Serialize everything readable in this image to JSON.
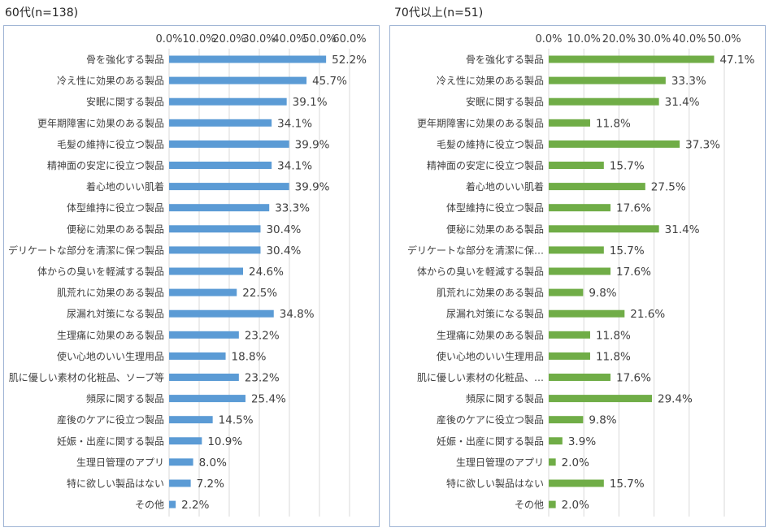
{
  "charts": [
    {
      "title": "60代(n=138)",
      "type": "bar",
      "orientation": "horizontal",
      "color": "#5b9bd5",
      "xlim": [
        0,
        60
      ],
      "ticks": [
        "0.0%",
        "10.0%",
        "20.0%",
        "30.0%",
        "40.0%",
        "50.0%",
        "60.0%"
      ],
      "categories": [
        "骨を強化する製品",
        "冷え性に効果のある製品",
        "安眠に関する製品",
        "更年期障害に効果のある製品",
        "毛髪の維持に役立つ製品",
        "精神面の安定に役立つ製品",
        "着心地のいい肌着",
        "体型維持に役立つ製品",
        "便秘に効果のある製品",
        "デリケートな部分を清潔に保つ製品",
        "体からの臭いを軽減する製品",
        "肌荒れに効果のある製品",
        "尿漏れ対策になる製品",
        "生理痛に効果のある製品",
        "使い心地のいい生理用品",
        "肌に優しい素材の化粧品、ソープ等",
        "頻尿に関する製品",
        "産後のケアに役立つ製品",
        "妊娠・出産に関する製品",
        "生理日管理のアプリ",
        "特に欲しい製品はない",
        "その他"
      ],
      "values": [
        52.2,
        45.7,
        39.1,
        34.1,
        39.9,
        34.1,
        39.9,
        33.3,
        30.4,
        30.4,
        24.6,
        22.5,
        34.8,
        23.2,
        18.8,
        23.2,
        25.4,
        14.5,
        10.9,
        8.0,
        7.2,
        2.2
      ],
      "labels": [
        "52.2%",
        "45.7%",
        "39.1%",
        "34.1%",
        "39.9%",
        "34.1%",
        "39.9%",
        "33.3%",
        "30.4%",
        "30.4%",
        "24.6%",
        "22.5%",
        "34.8%",
        "23.2%",
        "18.8%",
        "23.2%",
        "25.4%",
        "14.5%",
        "10.9%",
        "8.0%",
        "7.2%",
        "2.2%"
      ]
    },
    {
      "title": "70代以上(n=51)",
      "type": "bar",
      "orientation": "horizontal",
      "color": "#70ad47",
      "xlim": [
        0,
        50
      ],
      "ticks": [
        "0.0%",
        "10.0%",
        "20.0%",
        "30.0%",
        "40.0%",
        "50.0%"
      ],
      "categories": [
        "骨を強化する製品",
        "冷え性に効果のある製品",
        "安眠に関する製品",
        "更年期障害に効果のある製品",
        "毛髪の維持に役立つ製品",
        "精神面の安定に役立つ製品",
        "着心地のいい肌着",
        "体型維持に役立つ製品",
        "便秘に効果のある製品",
        "デリケートな部分を清潔に保…",
        "体からの臭いを軽減する製品",
        "肌荒れに効果のある製品",
        "尿漏れ対策になる製品",
        "生理痛に効果のある製品",
        "使い心地のいい生理用品",
        "肌に優しい素材の化粧品、…",
        "頻尿に関する製品",
        "産後のケアに役立つ製品",
        "妊娠・出産に関する製品",
        "生理日管理のアプリ",
        "特に欲しい製品はない",
        "その他"
      ],
      "values": [
        47.1,
        33.3,
        31.4,
        11.8,
        37.3,
        15.7,
        27.5,
        17.6,
        31.4,
        15.7,
        17.6,
        9.8,
        21.6,
        11.8,
        11.8,
        17.6,
        29.4,
        9.8,
        3.9,
        2.0,
        15.7,
        2.0
      ],
      "labels": [
        "47.1%",
        "33.3%",
        "31.4%",
        "11.8%",
        "37.3%",
        "15.7%",
        "27.5%",
        "17.6%",
        "31.4%",
        "15.7%",
        "17.6%",
        "9.8%",
        "21.6%",
        "11.8%",
        "11.8%",
        "17.6%",
        "29.4%",
        "9.8%",
        "3.9%",
        "2.0%",
        "15.7%",
        "2.0%"
      ]
    }
  ]
}
